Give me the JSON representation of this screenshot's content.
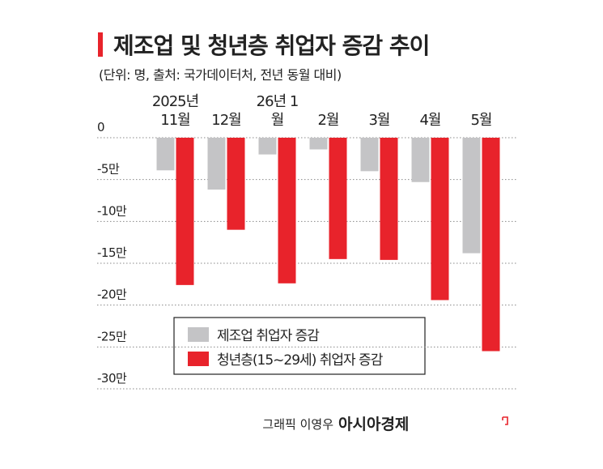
{
  "chart_data": {
    "type": "bar",
    "title": "제조업 및 청년층 취업자 증감 추이",
    "subtitle": "(단위: 명, 출처: 국가데이터처, 전년 동월 대비)",
    "categories": [
      "2025년 11월",
      "12월",
      "26년 1월",
      "2월",
      "3월",
      "4월",
      "5월"
    ],
    "series": [
      {
        "name": "제조업 취업자 증감",
        "color": "#c4c4c6",
        "values": [
          -3.9,
          -6.2,
          -2.0,
          -1.4,
          -4.0,
          -5.3,
          -13.8
        ]
      },
      {
        "name": "청년층(15~29세) 취업자 증감",
        "color": "#e8232b",
        "values": [
          -17.6,
          -11.0,
          -17.4,
          -14.5,
          -14.6,
          -19.4,
          -25.5
        ]
      }
    ],
    "ylim": [
      -30,
      0
    ],
    "yticks": [
      0,
      {
        "value": -5,
        "label": "-5만"
      },
      {
        "value": -10,
        "label": "-10만"
      },
      {
        "value": -15,
        "label": "-15만"
      },
      {
        "value": -20,
        "label": "-20만"
      },
      {
        "value": -25,
        "label": "-25만"
      },
      {
        "value": -30,
        "label": "-30만"
      }
    ],
    "grid": true,
    "credit": "그래픽 이영우",
    "source_logo": "아시아경제"
  }
}
